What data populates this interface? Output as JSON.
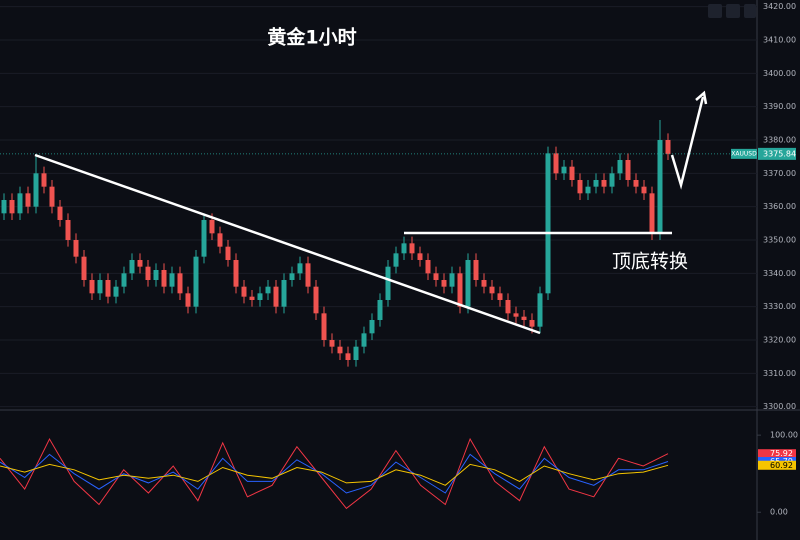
{
  "chart_data": [
    {
      "type": "candlestick",
      "title": "黄金1小时",
      "annotation": "顶底转换",
      "symbol": "XAUUSD",
      "up_color": "#26a69a",
      "down_color": "#ef5350",
      "grid": true,
      "ylim": [
        3299,
        3422
      ],
      "yticks": [
        {
          "value": 3300,
          "label": "3300.00"
        },
        {
          "value": 3310,
          "label": "3310.00"
        },
        {
          "value": 3320,
          "label": "3320.00"
        },
        {
          "value": 3330,
          "label": "3330.00"
        },
        {
          "value": 3340,
          "label": "3340.00"
        },
        {
          "value": 3350,
          "label": "3350.00"
        },
        {
          "value": 3360,
          "label": "3360.00"
        },
        {
          "value": 3370,
          "label": "3370.00"
        },
        {
          "value": 3380,
          "label": "3380.00"
        },
        {
          "value": 3390,
          "label": "3390.00"
        },
        {
          "value": 3400,
          "label": "3400.00"
        },
        {
          "value": 3410,
          "label": "3410.00"
        },
        {
          "value": 3420,
          "label": "3420.00"
        }
      ],
      "open": [
        3358,
        3362,
        3358,
        3364,
        3360,
        3370,
        3366,
        3360,
        3356,
        3350,
        3345,
        3338,
        3334,
        3338,
        3333,
        3336,
        3340,
        3344,
        3342,
        3338,
        3341,
        3336,
        3340,
        3334,
        3330,
        3345,
        3356,
        3352,
        3348,
        3344,
        3336,
        3333,
        3332,
        3334,
        3336,
        3330,
        3338,
        3340,
        3343,
        3336,
        3328,
        3320,
        3318,
        3316,
        3314,
        3318,
        3322,
        3326,
        3332,
        3342,
        3346,
        3349,
        3346,
        3344,
        3340,
        3338,
        3336,
        3340,
        3330,
        3344,
        3338,
        3336,
        3334,
        3332,
        3328,
        3327,
        3326,
        3324,
        3334,
        3376,
        3370,
        3372,
        3368,
        3364,
        3366,
        3368,
        3366,
        3370,
        3374,
        3368,
        3366,
        3364,
        3352,
        3380
      ],
      "high": [
        3364,
        3364,
        3366,
        3366,
        3375,
        3372,
        3368,
        3362,
        3358,
        3352,
        3347,
        3340,
        3340,
        3340,
        3338,
        3342,
        3346,
        3346,
        3344,
        3343,
        3343,
        3342,
        3342,
        3336,
        3347,
        3358,
        3358,
        3354,
        3350,
        3346,
        3338,
        3335,
        3336,
        3338,
        3338,
        3340,
        3342,
        3345,
        3345,
        3338,
        3330,
        3322,
        3320,
        3318,
        3320,
        3324,
        3328,
        3334,
        3344,
        3348,
        3351,
        3351,
        3348,
        3346,
        3342,
        3340,
        3342,
        3342,
        3346,
        3346,
        3340,
        3338,
        3336,
        3334,
        3330,
        3329,
        3328,
        3336,
        3378,
        3378,
        3374,
        3374,
        3370,
        3368,
        3370,
        3370,
        3372,
        3376,
        3376,
        3370,
        3368,
        3366,
        3386,
        3382
      ],
      "low": [
        3356,
        3356,
        3356,
        3358,
        3358,
        3364,
        3358,
        3354,
        3348,
        3343,
        3336,
        3332,
        3332,
        3331,
        3331,
        3334,
        3338,
        3340,
        3336,
        3336,
        3334,
        3334,
        3332,
        3328,
        3328,
        3343,
        3350,
        3346,
        3342,
        3334,
        3331,
        3330,
        3330,
        3332,
        3328,
        3328,
        3336,
        3338,
        3334,
        3326,
        3318,
        3316,
        3314,
        3312,
        3312,
        3316,
        3320,
        3324,
        3330,
        3340,
        3344,
        3344,
        3342,
        3338,
        3336,
        3334,
        3334,
        3328,
        3328,
        3336,
        3334,
        3332,
        3330,
        3326,
        3325,
        3324,
        3322,
        3322,
        3332,
        3368,
        3368,
        3366,
        3362,
        3362,
        3364,
        3364,
        3364,
        3368,
        3366,
        3364,
        3362,
        3350,
        3350,
        3374
      ],
      "close": [
        3362,
        3358,
        3364,
        3360,
        3370,
        3366,
        3360,
        3356,
        3350,
        3345,
        3338,
        3334,
        3338,
        3333,
        3336,
        3340,
        3344,
        3342,
        3338,
        3341,
        3336,
        3340,
        3334,
        3330,
        3345,
        3356,
        3352,
        3348,
        3344,
        3336,
        3333,
        3332,
        3334,
        3336,
        3330,
        3338,
        3340,
        3343,
        3336,
        3328,
        3320,
        3318,
        3316,
        3314,
        3318,
        3322,
        3326,
        3332,
        3342,
        3346,
        3349,
        3346,
        3344,
        3340,
        3338,
        3336,
        3340,
        3330,
        3344,
        3338,
        3336,
        3334,
        3332,
        3328,
        3327,
        3326,
        3324,
        3334,
        3376,
        3370,
        3372,
        3368,
        3364,
        3366,
        3368,
        3366,
        3370,
        3374,
        3368,
        3366,
        3364,
        3352,
        3380,
        3375.84
      ]
    },
    {
      "type": "line",
      "ylim": [
        -36,
        130
      ],
      "yticks": [
        {
          "value": 0,
          "label": "0.00"
        },
        {
          "value": 100,
          "label": "100.00"
        }
      ],
      "series": [
        {
          "color": "#f23645",
          "values": [
            70,
            30,
            95,
            40,
            10,
            55,
            25,
            60,
            15,
            90,
            20,
            35,
            85,
            45,
            5,
            30,
            80,
            35,
            10,
            95,
            40,
            15,
            85,
            30,
            20,
            70,
            60,
            75.92
          ]
        },
        {
          "color": "#2962ff",
          "values": [
            65,
            45,
            75,
            50,
            30,
            50,
            38,
            52,
            30,
            70,
            40,
            40,
            68,
            50,
            25,
            35,
            65,
            45,
            25,
            75,
            50,
            30,
            70,
            45,
            35,
            55,
            55,
            65.79
          ]
        },
        {
          "color": "#f5c400",
          "values": [
            60,
            52,
            62,
            55,
            42,
            48,
            44,
            48,
            40,
            58,
            48,
            44,
            58,
            52,
            38,
            40,
            55,
            48,
            35,
            62,
            55,
            40,
            60,
            50,
            42,
            50,
            52,
            60.92
          ]
        }
      ]
    }
  ]
}
